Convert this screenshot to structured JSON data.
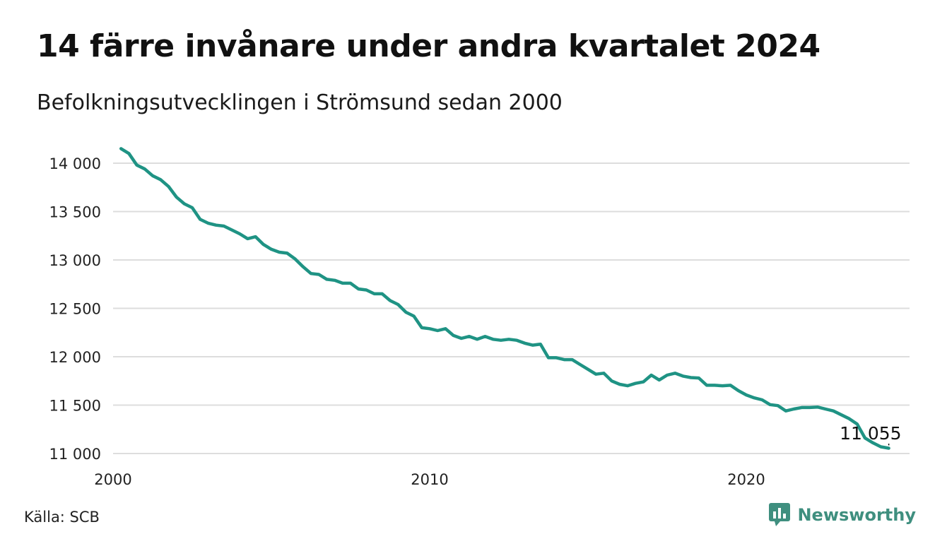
{
  "header": {
    "title": "14 färre invånare under andra kvartalet 2024",
    "subtitle": "Befolkningsutvecklingen i Strömsund sedan 2000"
  },
  "footer": {
    "source": "Källa: SCB",
    "brand": "Newsworthy"
  },
  "colors": {
    "line": "#1f9384",
    "grid": "#dddddd",
    "brand": "#3f8f7f"
  },
  "chart_data": {
    "type": "line",
    "title": "14 färre invånare under andra kvartalet 2024",
    "subtitle": "Befolkningsutvecklingen i Strömsund sedan 2000",
    "xlabel": "",
    "ylabel": "",
    "x_range": [
      2000,
      2025
    ],
    "ylim": [
      11000,
      14150
    ],
    "y_ticks": [
      11000,
      11500,
      12000,
      12500,
      13000,
      13500,
      14000
    ],
    "y_tick_labels": [
      "11 000",
      "11 500",
      "12 000",
      "12 500",
      "13 000",
      "13 500",
      "14 000"
    ],
    "x_ticks": [
      2000,
      2010,
      2020
    ],
    "x_tick_labels": [
      "2000",
      "2010",
      "2020"
    ],
    "grid": "horizontal",
    "end_label": "11 055",
    "series": [
      {
        "x": [
          2000.25,
          2000.5,
          2000.75,
          2001.0,
          2001.25,
          2001.5,
          2001.75,
          2002.0,
          2002.25,
          2002.5,
          2002.75,
          2003.0,
          2003.25,
          2003.5,
          2003.75,
          2004.0,
          2004.25,
          2004.5,
          2004.75,
          2005.0,
          2005.25,
          2005.5,
          2005.75,
          2006.0,
          2006.25,
          2006.5,
          2006.75,
          2007.0,
          2007.25,
          2007.5,
          2007.75,
          2008.0,
          2008.25,
          2008.5,
          2008.75,
          2009.0,
          2009.25,
          2009.5,
          2009.75,
          2010.0,
          2010.25,
          2010.5,
          2010.75,
          2011.0,
          2011.25,
          2011.5,
          2011.75,
          2012.0,
          2012.25,
          2012.5,
          2012.75,
          2013.0,
          2013.25,
          2013.5,
          2013.75,
          2014.0,
          2014.25,
          2014.5,
          2014.75,
          2015.0,
          2015.25,
          2015.5,
          2015.75,
          2016.0,
          2016.25,
          2016.5,
          2016.75,
          2017.0,
          2017.25,
          2017.5,
          2017.75,
          2018.0,
          2018.25,
          2018.5,
          2018.75,
          2019.0,
          2019.25,
          2019.5,
          2019.75,
          2020.0,
          2020.25,
          2020.5,
          2020.75,
          2021.0,
          2021.25,
          2021.5,
          2021.75,
          2022.0,
          2022.25,
          2022.5,
          2022.75,
          2023.0,
          2023.25,
          2023.5,
          2023.75,
          2024.0,
          2024.25,
          2024.5
        ],
        "values": [
          14150,
          14100,
          13980,
          13940,
          13870,
          13830,
          13760,
          13650,
          13580,
          13540,
          13420,
          13380,
          13360,
          13350,
          13310,
          13270,
          13220,
          13240,
          13160,
          13110,
          13080,
          13070,
          13010,
          12930,
          12860,
          12850,
          12800,
          12790,
          12760,
          12760,
          12700,
          12690,
          12650,
          12650,
          12580,
          12540,
          12460,
          12420,
          12300,
          12290,
          12270,
          12290,
          12220,
          12190,
          12210,
          12180,
          12210,
          12180,
          12170,
          12180,
          12170,
          12140,
          12120,
          12130,
          11990,
          11990,
          11970,
          11970,
          11920,
          11870,
          11820,
          11830,
          11750,
          11715,
          11700,
          11725,
          11740,
          11810,
          11760,
          11810,
          11830,
          11800,
          11785,
          11780,
          11705,
          11705,
          11700,
          11705,
          11650,
          11605,
          11575,
          11555,
          11505,
          11495,
          11440,
          11460,
          11475,
          11475,
          11480,
          11460,
          11440,
          11400,
          11360,
          11305,
          11160,
          11110,
          11069,
          11055
        ]
      }
    ]
  }
}
